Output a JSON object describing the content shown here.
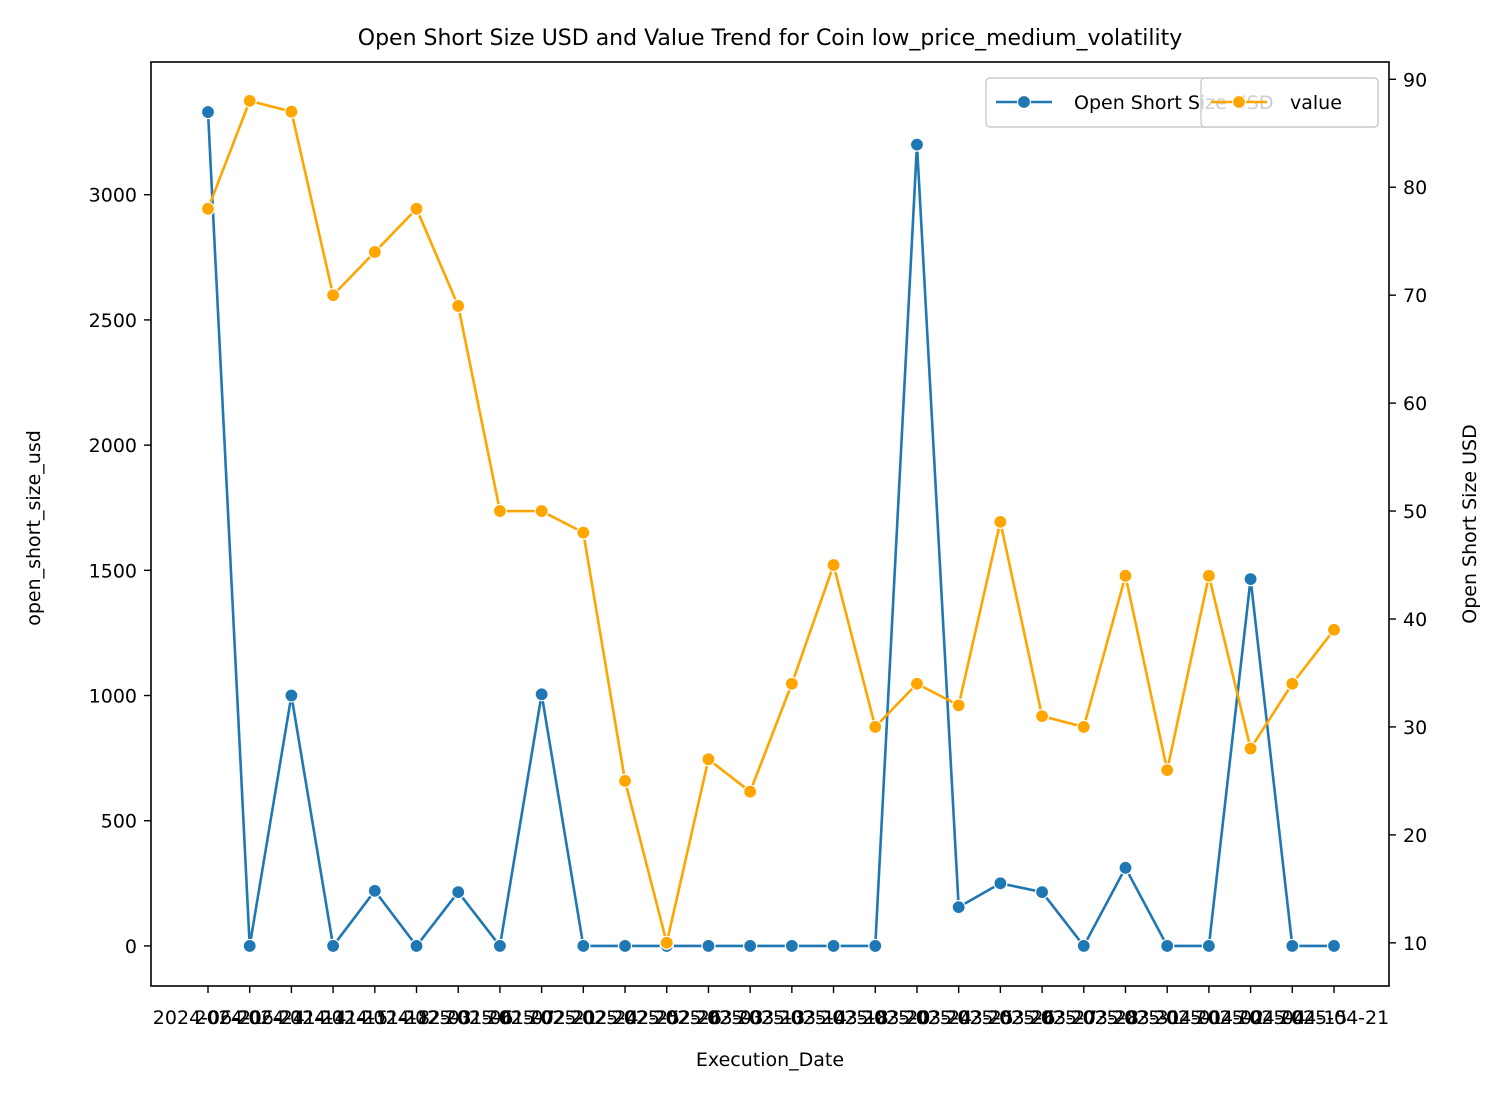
{
  "chart_data": {
    "type": "line",
    "title": "Open Short Size USD and Value Trend for Coin low_price_medium_volatility",
    "xlabel": "Execution_Date",
    "ylabel_left": "open_short_size_usd",
    "ylabel_right": "Open Short Size USD",
    "left_axis": {
      "ylim": [
        -160,
        3530
      ],
      "ticks": [
        0,
        500,
        1000,
        1500,
        2000,
        2500,
        3000
      ]
    },
    "right_axis": {
      "ylim": [
        6.0,
        91.6
      ],
      "ticks": [
        10,
        20,
        30,
        40,
        50,
        60,
        70,
        80,
        90
      ]
    },
    "x_tick_labels": [
      "2024-06-21",
      "2024-06-24",
      "2024-11-14",
      "2024-11-15",
      "2024-11-18",
      "2024-12-03",
      "2025-01-06",
      "2025-01-07",
      "2025-02-21",
      "2025-02-24",
      "2025-02-25",
      "2025-02-26",
      "2025-03-03",
      "2025-03-13",
      "2025-03-14",
      "2025-03-18",
      "2025-03-20",
      "2025-03-24",
      "2025-03-25",
      "2025-03-26",
      "2025-03-27",
      "2025-03-28",
      "2025-03-31",
      "2025-04-01",
      "2025-04-02",
      "2025-04-04",
      "2025-04-15",
      "2025-04-21"
    ],
    "series": [
      {
        "name": "Open Short Size USD",
        "axis": "left",
        "color": "#1f77b4",
        "values": [
          3330,
          0,
          1000,
          0,
          220,
          0,
          215,
          0,
          1005,
          0,
          0,
          0,
          0,
          0,
          0,
          0,
          0,
          3200,
          155,
          250,
          215,
          0,
          312,
          0,
          0,
          1465,
          0,
          0
        ]
      },
      {
        "name": "value",
        "axis": "right",
        "color": "#ffa500",
        "values": [
          78,
          88,
          87,
          70,
          74,
          78,
          69,
          50,
          50,
          48,
          25,
          10,
          27,
          24,
          34,
          45,
          30,
          34,
          32,
          49,
          31,
          30,
          44,
          26,
          44,
          28,
          34,
          39
        ]
      }
    ],
    "legend_left": {
      "label": "Open Short Size USD",
      "placement": "top-right"
    },
    "legend_right": {
      "label": "value",
      "placement": "top-right"
    },
    "grid": false
  }
}
